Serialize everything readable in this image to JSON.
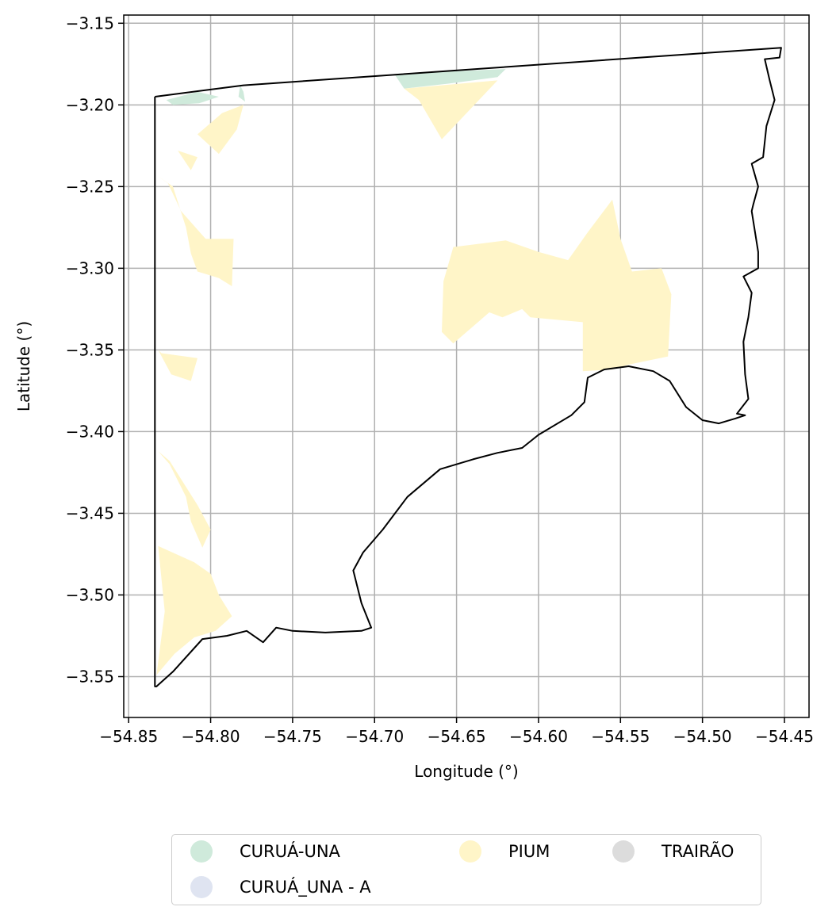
{
  "chart_data": {
    "type": "map",
    "xlabel": "Longitude (°)",
    "ylabel": "Latitude (°)",
    "xlim": [
      -54.853,
      -54.435
    ],
    "ylim": [
      -3.575,
      -3.145
    ],
    "xticks": [
      -54.85,
      -54.8,
      -54.75,
      -54.7,
      -54.65,
      -54.6,
      -54.55,
      -54.5,
      -54.45
    ],
    "xtick_labels": [
      "−54.85",
      "−54.80",
      "−54.75",
      "−54.70",
      "−54.65",
      "−54.60",
      "−54.55",
      "−54.50",
      "−54.45"
    ],
    "yticks": [
      -3.15,
      -3.2,
      -3.25,
      -3.3,
      -3.35,
      -3.4,
      -3.45,
      -3.5,
      -3.55
    ],
    "ytick_labels": [
      "−3.15",
      "−3.20",
      "−3.25",
      "−3.30",
      "−3.35",
      "−3.40",
      "−3.45",
      "−3.50",
      "−3.55"
    ],
    "grid": true,
    "legend_position": "bottom-center",
    "legend": [
      {
        "label": "CURUÁ-UNA",
        "color": "#cfeadb"
      },
      {
        "label": "CURUÁ_UNA - A",
        "color": "#dfe4f1"
      },
      {
        "label": "PIUM",
        "color": "#fff5c8"
      },
      {
        "label": "TRAIRÃO",
        "color": "#dcdcdc"
      }
    ],
    "boundary_outline": [
      [
        -54.834,
        -3.195
      ],
      [
        -54.78,
        -3.188
      ],
      [
        -54.452,
        -3.165
      ],
      [
        -54.453,
        -3.171
      ],
      [
        -54.462,
        -3.172
      ],
      [
        -54.459,
        -3.185
      ],
      [
        -54.456,
        -3.197
      ],
      [
        -54.461,
        -3.213
      ],
      [
        -54.463,
        -3.232
      ],
      [
        -54.47,
        -3.236
      ],
      [
        -54.466,
        -3.25
      ],
      [
        -54.469,
        -3.261
      ],
      [
        -54.47,
        -3.265
      ],
      [
        -54.466,
        -3.29
      ],
      [
        -54.466,
        -3.3
      ],
      [
        -54.475,
        -3.305
      ],
      [
        -54.47,
        -3.315
      ],
      [
        -54.472,
        -3.33
      ],
      [
        -54.475,
        -3.345
      ],
      [
        -54.474,
        -3.365
      ],
      [
        -54.472,
        -3.38
      ],
      [
        -54.479,
        -3.389
      ],
      [
        -54.474,
        -3.39
      ],
      [
        -54.48,
        -3.392
      ],
      [
        -54.49,
        -3.395
      ],
      [
        -54.5,
        -3.393
      ],
      [
        -54.51,
        -3.385
      ],
      [
        -54.52,
        -3.369
      ],
      [
        -54.53,
        -3.363
      ],
      [
        -54.545,
        -3.36
      ],
      [
        -54.56,
        -3.362
      ],
      [
        -54.57,
        -3.367
      ],
      [
        -54.572,
        -3.382
      ],
      [
        -54.58,
        -3.39
      ],
      [
        -54.6,
        -3.402
      ],
      [
        -54.61,
        -3.41
      ],
      [
        -54.625,
        -3.413
      ],
      [
        -54.64,
        -3.417
      ],
      [
        -54.66,
        -3.423
      ],
      [
        -54.68,
        -3.44
      ],
      [
        -54.695,
        -3.46
      ],
      [
        -54.707,
        -3.474
      ],
      [
        -54.713,
        -3.485
      ],
      [
        -54.708,
        -3.505
      ],
      [
        -54.702,
        -3.52
      ],
      [
        -54.708,
        -3.522
      ],
      [
        -54.73,
        -3.523
      ],
      [
        -54.75,
        -3.522
      ],
      [
        -54.76,
        -3.52
      ],
      [
        -54.768,
        -3.529
      ],
      [
        -54.778,
        -3.522
      ],
      [
        -54.79,
        -3.525
      ],
      [
        -54.805,
        -3.527
      ],
      [
        -54.823,
        -3.547
      ],
      [
        -54.833,
        -3.556
      ],
      [
        -54.834,
        -3.556
      ],
      [
        -54.834,
        -3.195
      ]
    ],
    "regions": [
      {
        "name": "CURUÁ-UNA",
        "polygons": [
          [
            [
              -54.827,
              -3.197
            ],
            [
              -54.808,
              -3.192
            ],
            [
              -54.795,
              -3.195
            ],
            [
              -54.807,
              -3.199
            ],
            [
              -54.823,
              -3.2
            ]
          ],
          [
            [
              -54.782,
              -3.188
            ],
            [
              -54.783,
              -3.195
            ],
            [
              -54.779,
              -3.198
            ],
            [
              -54.78,
              -3.192
            ]
          ],
          [
            [
              -54.688,
              -3.181
            ],
            [
              -54.62,
              -3.178
            ],
            [
              -54.625,
              -3.183
            ],
            [
              -54.655,
              -3.187
            ],
            [
              -54.682,
              -3.19
            ]
          ]
        ]
      },
      {
        "name": "PIUM",
        "polygons": [
          [
            [
              -54.682,
              -3.19
            ],
            [
              -54.625,
              -3.185
            ],
            [
              -54.659,
              -3.221
            ],
            [
              -54.673,
              -3.197
            ]
          ],
          [
            [
              -54.652,
              -3.287
            ],
            [
              -54.62,
              -3.283
            ],
            [
              -54.6,
              -3.29
            ],
            [
              -54.582,
              -3.295
            ],
            [
              -54.57,
              -3.278
            ],
            [
              -54.555,
              -3.258
            ],
            [
              -54.55,
              -3.282
            ],
            [
              -54.543,
              -3.302
            ],
            [
              -54.525,
              -3.3
            ],
            [
              -54.519,
              -3.316
            ],
            [
              -54.521,
              -3.354
            ],
            [
              -54.545,
              -3.359
            ],
            [
              -54.555,
              -3.362
            ],
            [
              -54.573,
              -3.363
            ],
            [
              -54.573,
              -3.333
            ],
            [
              -54.605,
              -3.33
            ],
            [
              -54.61,
              -3.325
            ],
            [
              -54.622,
              -3.33
            ],
            [
              -54.63,
              -3.327
            ],
            [
              -54.652,
              -3.346
            ],
            [
              -54.659,
              -3.339
            ],
            [
              -54.658,
              -3.308
            ]
          ],
          [
            [
              -54.833,
              -3.243
            ],
            [
              -54.823,
              -3.25
            ],
            [
              -54.815,
              -3.275
            ],
            [
              -54.812,
              -3.291
            ],
            [
              -54.808,
              -3.302
            ],
            [
              -54.795,
              -3.306
            ],
            [
              -54.787,
              -3.311
            ],
            [
              -54.786,
              -3.282
            ],
            [
              -54.803,
              -3.282
            ],
            [
              -54.818,
              -3.265
            ],
            [
              -54.826,
              -3.248
            ]
          ],
          [
            [
              -54.832,
              -3.35
            ],
            [
              -54.824,
              -3.365
            ],
            [
              -54.812,
              -3.369
            ],
            [
              -54.808,
              -3.355
            ],
            [
              -54.83,
              -3.352
            ]
          ],
          [
            [
              -54.832,
              -3.412
            ],
            [
              -54.825,
              -3.42
            ],
            [
              -54.815,
              -3.44
            ],
            [
              -54.812,
              -3.455
            ],
            [
              -54.805,
              -3.471
            ],
            [
              -54.8,
              -3.46
            ],
            [
              -54.808,
              -3.445
            ],
            [
              -54.825,
              -3.418
            ]
          ],
          [
            [
              -54.832,
              -3.47
            ],
            [
              -54.81,
              -3.48
            ],
            [
              -54.8,
              -3.487
            ],
            [
              -54.795,
              -3.5
            ],
            [
              -54.787,
              -3.513
            ],
            [
              -54.797,
              -3.522
            ],
            [
              -54.81,
              -3.526
            ],
            [
              -54.822,
              -3.536
            ],
            [
              -54.833,
              -3.549
            ],
            [
              -54.828,
              -3.51
            ]
          ],
          [
            [
              -54.808,
              -3.218
            ],
            [
              -54.795,
              -3.23
            ],
            [
              -54.784,
              -3.215
            ],
            [
              -54.78,
              -3.2
            ],
            [
              -54.793,
              -3.205
            ]
          ],
          [
            [
              -54.82,
              -3.228
            ],
            [
              -54.812,
              -3.24
            ],
            [
              -54.808,
              -3.232
            ]
          ]
        ]
      }
    ]
  }
}
